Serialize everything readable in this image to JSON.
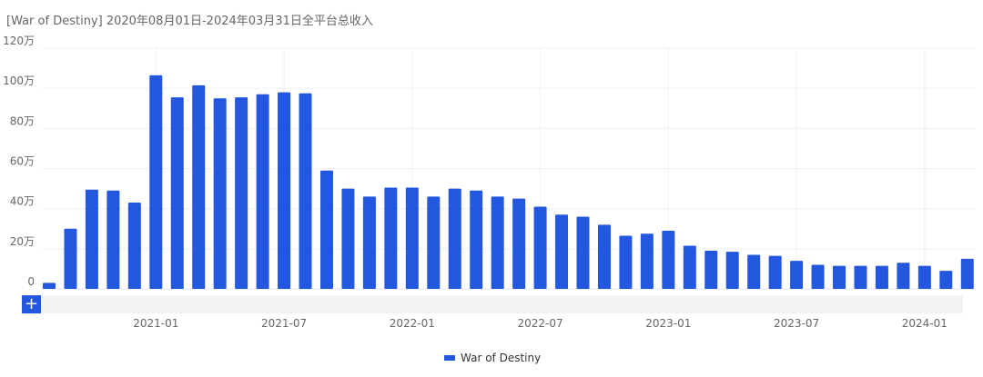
{
  "title": "[War of Destiny]  2020年08月01日-2024年03月31日全平台总收入",
  "zoom_button": "+",
  "chart_data": {
    "type": "bar",
    "title": "[War of Destiny]  2020年08月01日-2024年03月31日全平台总收入",
    "xlabel": "",
    "ylabel": "",
    "unit": "万",
    "ylim": [
      0,
      120
    ],
    "yticks": [
      "0",
      "20万",
      "40万",
      "60万",
      "80万",
      "100万",
      "120万"
    ],
    "xticks": [
      "2021-01",
      "2021-07",
      "2022-01",
      "2022-07",
      "2023-01",
      "2023-07",
      "2024-01"
    ],
    "grid": true,
    "legend_position": "bottom-center",
    "categories": [
      "2020-08",
      "2020-09",
      "2020-10",
      "2020-11",
      "2020-12",
      "2021-01",
      "2021-02",
      "2021-03",
      "2021-04",
      "2021-05",
      "2021-06",
      "2021-07",
      "2021-08",
      "2021-09",
      "2021-10",
      "2021-11",
      "2021-12",
      "2022-01",
      "2022-02",
      "2022-03",
      "2022-04",
      "2022-05",
      "2022-06",
      "2022-07",
      "2022-08",
      "2022-09",
      "2022-10",
      "2022-11",
      "2022-12",
      "2023-01",
      "2023-02",
      "2023-03",
      "2023-04",
      "2023-05",
      "2023-06",
      "2023-07",
      "2023-08",
      "2023-09",
      "2023-10",
      "2023-11",
      "2023-12",
      "2024-01",
      "2024-02",
      "2024-03"
    ],
    "series": [
      {
        "name": "War of Destiny",
        "color": "#2457e0",
        "values": [
          3,
          30,
          49.5,
          49,
          43,
          106.5,
          95.5,
          101.5,
          95,
          95.5,
          97,
          98,
          97.5,
          59,
          50,
          46,
          50.5,
          50.5,
          46,
          50,
          49,
          46,
          45,
          41,
          37,
          36,
          32,
          26.5,
          27.5,
          29,
          21.5,
          19,
          18.5,
          17,
          16.5,
          14,
          12,
          11.5,
          11.5,
          11.5,
          13,
          11.5,
          9,
          15
        ]
      }
    ]
  }
}
